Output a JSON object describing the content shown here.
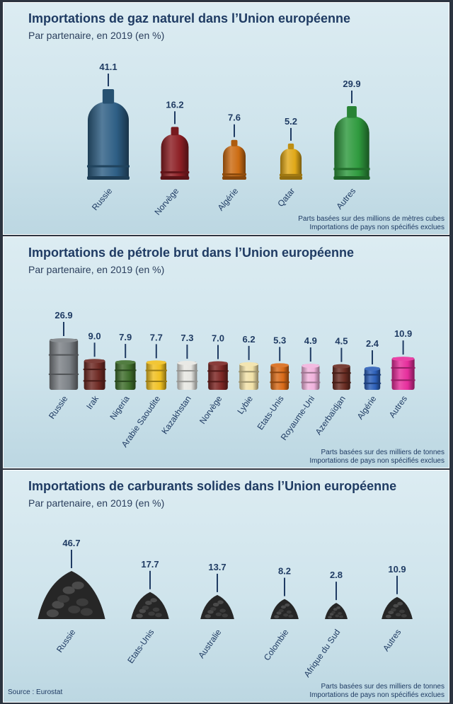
{
  "source": "Source : Eurostat",
  "chart_data": [
    {
      "type": "bar",
      "title": "Importations de gaz naturel dans l’Union européenne",
      "subtitle": "Par partenaire, en 2019 (en %)",
      "categories": [
        "Russie",
        "Norvège",
        "Algérie",
        "Qatar",
        "Autres"
      ],
      "values": [
        41.1,
        16.2,
        7.6,
        5.2,
        29.9
      ],
      "value_labels": [
        "41.1",
        "16.2",
        "7.6",
        "5.2",
        "29.9"
      ],
      "colors": [
        "#2e5f85",
        "#8c1e24",
        "#cc6c12",
        "#e0a818",
        "#2f9a3e"
      ],
      "icon": "gas-cylinder-icon",
      "notes": [
        "Parts basées sur des millions de mètres cubes",
        "Importations de pays non spécifiés exclues"
      ]
    },
    {
      "type": "bar",
      "title": "Importations de pétrole brut dans l’Union européenne",
      "subtitle": "Par partenaire, en 2019 (en %)",
      "categories": [
        "Russie",
        "Irak",
        "Nigeria",
        "Arabie Saoudite",
        "Kazakhstan",
        "Norvège",
        "Lybie",
        "Etats-Unis",
        "Royaume-Uni",
        "Azerbaïdjan",
        "Algérie",
        "Autres"
      ],
      "values": [
        26.9,
        9.0,
        7.9,
        7.7,
        7.3,
        7.0,
        6.2,
        5.3,
        4.9,
        4.5,
        2.4,
        10.9
      ],
      "value_labels": [
        "26.9",
        "9.0",
        "7.9",
        "7.7",
        "7.3",
        "7.0",
        "6.2",
        "5.3",
        "4.9",
        "4.5",
        "2.4",
        "10.9"
      ],
      "colors": [
        "#7c8186",
        "#6e2a24",
        "#3f6e2c",
        "#f0c020",
        "#e6e6e2",
        "#7c2624",
        "#f2e2a8",
        "#d86a18",
        "#f0b2dc",
        "#6a2c22",
        "#2c5fb8",
        "#e62e9c"
      ],
      "icon": "oil-barrel-icon",
      "notes": [
        "Parts basées sur des milliers de tonnes",
        "Importations de pays non spécifiés exclues"
      ]
    },
    {
      "type": "bar",
      "title": "Importations de carburants solides dans l’Union européenne",
      "subtitle": "Par partenaire, en 2019 (en %)",
      "categories": [
        "Russie",
        "Etats-Unis",
        "Australie",
        "Colombie",
        "Afrique du Sud",
        "Autres"
      ],
      "values": [
        46.7,
        17.7,
        13.7,
        8.2,
        2.8,
        10.9
      ],
      "value_labels": [
        "46.7",
        "17.7",
        "13.7",
        "8.2",
        "2.8",
        "10.9"
      ],
      "colors": [
        "#2a2a2a",
        "#2a2a2a",
        "#2a2a2a",
        "#2a2a2a",
        "#2a2a2a",
        "#2a2a2a"
      ],
      "icon": "coal-pile-icon",
      "notes": [
        "Parts basées sur des milliers de tonnes",
        "Importations de pays non spécifiés exclues"
      ]
    }
  ]
}
